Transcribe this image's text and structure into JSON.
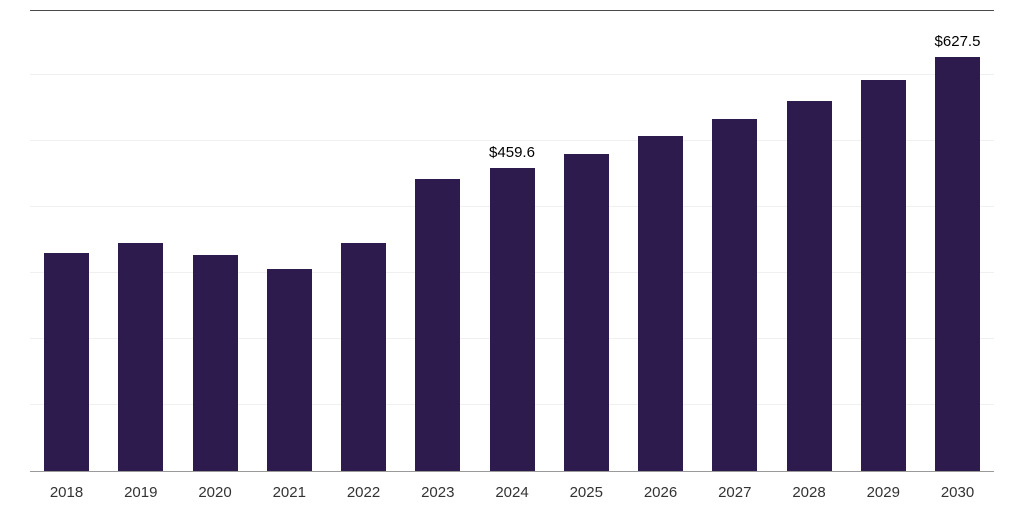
{
  "chart_data": {
    "type": "bar",
    "title": "",
    "xlabel": "",
    "ylabel": "",
    "categories": [
      "2018",
      "2019",
      "2020",
      "2021",
      "2022",
      "2023",
      "2024",
      "2025",
      "2026",
      "2027",
      "2028",
      "2029",
      "2030"
    ],
    "values": [
      331,
      346,
      327,
      306,
      345,
      442,
      459.6,
      480,
      508,
      533,
      561,
      592,
      627.5
    ],
    "data_labels": [
      "",
      "",
      "",
      "",
      "",
      "",
      "$459.6",
      "",
      "",
      "",
      "",
      "",
      "$627.5"
    ],
    "ylim": [
      0,
      700
    ],
    "gridline_step": 100,
    "grid": "horizontal-faint",
    "legend_position": "none",
    "bar_color": "#2e1b4e",
    "axis_line_top_color": "#4a4a4a",
    "axis_line_bottom_color": "#9a9a9a",
    "tick_label_color": "#333333",
    "data_label_color": "#000000"
  }
}
